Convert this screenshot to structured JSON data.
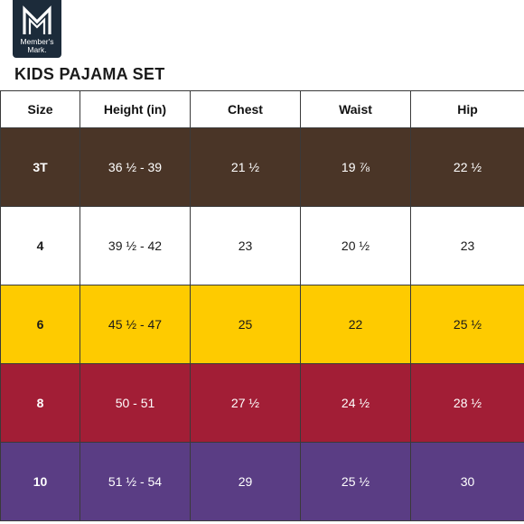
{
  "brand": {
    "logo_text_line1": "Member's",
    "logo_text_line2": "Mark."
  },
  "title": "KIDS PAJAMA SET",
  "colors": {
    "logo_bg": "#1c2b3a",
    "row_3T": "#4a3527",
    "row_4": "#ffffff",
    "row_6": "#fecb00",
    "row_8": "#a21e36",
    "row_10": "#5a3d84"
  },
  "table": {
    "headers": [
      "Size",
      "Height (in)",
      "Chest",
      "Waist",
      "Hip"
    ],
    "rows": [
      {
        "size": "3T",
        "height": "36 ½ - 39",
        "chest": "21 ½",
        "waist": "19 ⅞",
        "hip": "22 ½"
      },
      {
        "size": "4",
        "height": "39 ½ - 42",
        "chest": "23",
        "waist": "20 ½",
        "hip": "23"
      },
      {
        "size": "6",
        "height": "45 ½ - 47",
        "chest": "25",
        "waist": "22",
        "hip": "25 ½"
      },
      {
        "size": "8",
        "height": "50 - 51",
        "chest": "27 ½",
        "waist": "24 ½",
        "hip": "28 ½"
      },
      {
        "size": "10",
        "height": "51 ½ - 54",
        "chest": "29",
        "waist": "25 ½",
        "hip": "30"
      }
    ]
  }
}
